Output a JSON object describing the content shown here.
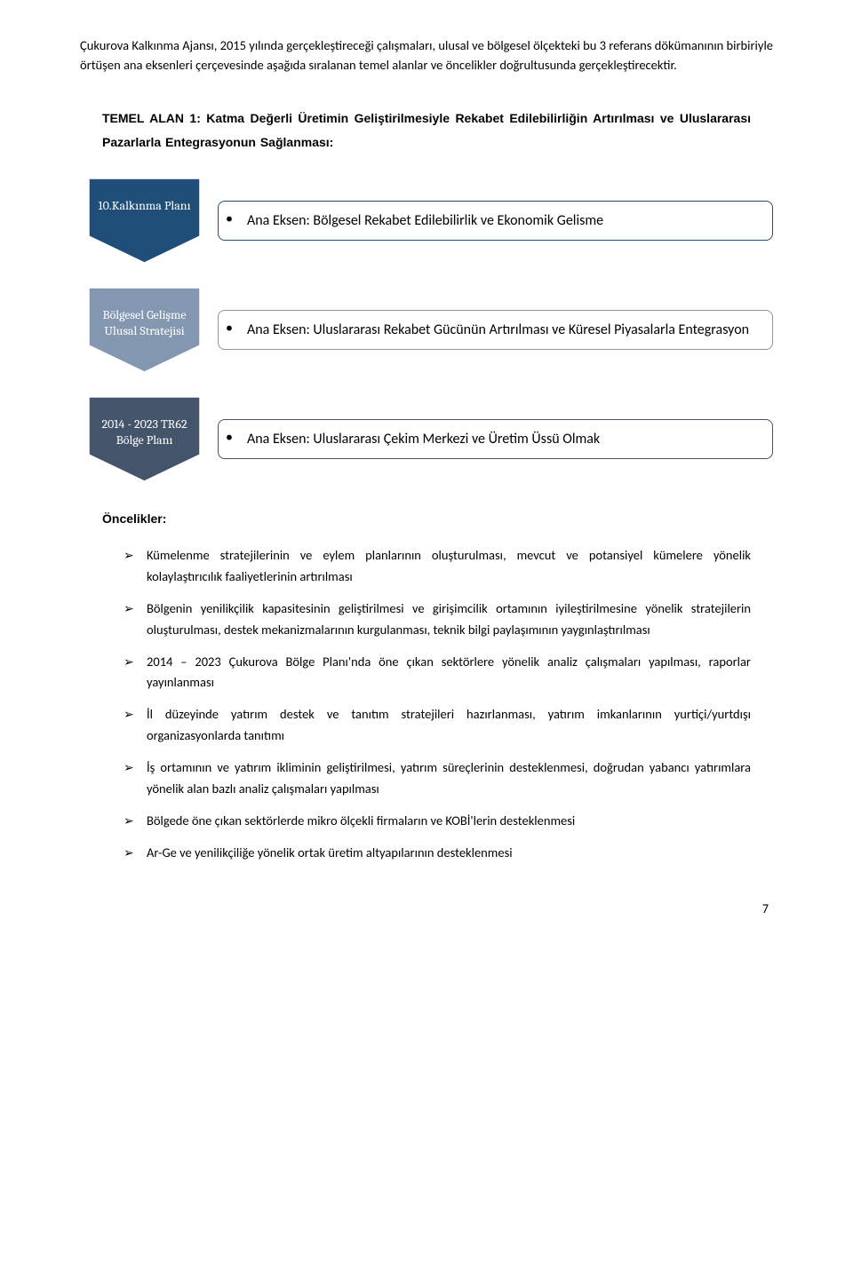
{
  "intro": "Çukurova Kalkınma Ajansı, 2015 yılında gerçekleştireceği çalışmaları, ulusal ve bölgesel ölçekteki bu 3 referans dökümanının birbiriyle örtüşen ana eksenleri çerçevesinde aşağıda sıralanan temel alanlar ve öncelikler doğrultusunda gerçekleştirecektir.",
  "temel_heading": "TEMEL ALAN 1: Katma Değerli Üretimin Geliştirilmesiyle Rekabet Edilebilirliğin Artırılması ve Uluslararası Pazarlarla Entegrasyonun Sağlanması:",
  "rows": [
    {
      "chevron_label": "10.Kalkınma Planı",
      "chevron_fill": "#1f4e79",
      "chevron_stroke": "#ffffff",
      "box_border": "#1f4e79",
      "box_text": "Ana Eksen: Bölgesel Rekabet Edilebilirlik ve Ekonomik Gelisme"
    },
    {
      "chevron_label": "Bölgesel Gelişme Ulusal Stratejisi",
      "chevron_fill": "#8497b0",
      "chevron_stroke": "#ffffff",
      "box_border": "#8497b0",
      "box_text": "Ana Eksen: Uluslararası Rekabet Gücünün Artırılması ve Küresel Piyasalarla Entegrasyon"
    },
    {
      "chevron_label": "2014 - 2023 TR62 Bölge Planı",
      "chevron_fill": "#44546a",
      "chevron_stroke": "#ffffff",
      "box_border": "#44546a",
      "box_text": "Ana Eksen: Uluslararası Çekim Merkezi ve Üretim Üssü Olmak"
    }
  ],
  "oncelik_heading": "Öncelikler:",
  "priorities": [
    "Kümelenme stratejilerinin ve eylem planlarının oluşturulması, mevcut ve potansiyel kümelere yönelik kolaylaştırıcılık faaliyetlerinin artırılması",
    "Bölgenin yenilikçilik kapasitesinin geliştirilmesi ve girişimcilik ortamının iyileştirilmesine yönelik stratejilerin oluşturulması, destek mekanizmalarının kurgulanması, teknik bilgi paylaşımının yaygınlaştırılması",
    "2014 – 2023 Çukurova Bölge Planı'nda öne çıkan sektörlere yönelik analiz çalışmaları yapılması, raporlar yayınlanması",
    "İl düzeyinde yatırım destek ve tanıtım stratejileri hazırlanması, yatırım imkanlarının yurtiçi/yurtdışı organizasyonlarda tanıtımı",
    "İş ortamının ve yatırım ikliminin geliştirilmesi, yatırım süreçlerinin desteklenmesi, doğrudan yabancı yatırımlara yönelik alan bazlı analiz çalışmaları yapılması",
    "Bölgede öne çıkan sektörlerde mikro ölçekli firmaların ve KOBİ'lerin desteklenmesi",
    "Ar-Ge ve yenilikçiliğe yönelik ortak üretim altyapılarının desteklenmesi"
  ],
  "page_number": "7"
}
